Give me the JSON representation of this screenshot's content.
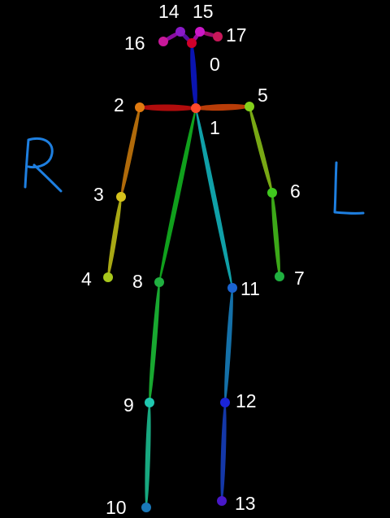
{
  "side_labels": {
    "right": "R",
    "left": "L"
  },
  "side_color": "#1e7fe0",
  "keypoints": [
    {
      "id": "0",
      "label": "0",
      "color": "#d0002a"
    },
    {
      "id": "1",
      "label": "1",
      "color": "#ff4a2a"
    },
    {
      "id": "2",
      "label": "2",
      "color": "#e07a10"
    },
    {
      "id": "3",
      "label": "3",
      "color": "#d6c21c"
    },
    {
      "id": "4",
      "label": "4",
      "color": "#a8c81c"
    },
    {
      "id": "5",
      "label": "5",
      "color": "#84d01c"
    },
    {
      "id": "6",
      "label": "6",
      "color": "#40c81e"
    },
    {
      "id": "7",
      "label": "7",
      "color": "#20b040"
    },
    {
      "id": "8",
      "label": "8",
      "color": "#20b040"
    },
    {
      "id": "9",
      "label": "9",
      "color": "#20c8b0"
    },
    {
      "id": "10",
      "label": "10",
      "color": "#1a78b8"
    },
    {
      "id": "11",
      "label": "11",
      "color": "#1a64d0"
    },
    {
      "id": "12",
      "label": "12",
      "color": "#1a24d8"
    },
    {
      "id": "13",
      "label": "13",
      "color": "#4818c8"
    },
    {
      "id": "14",
      "label": "14",
      "color": "#8a1ac8"
    },
    {
      "id": "15",
      "label": "15",
      "color": "#cc18c8"
    },
    {
      "id": "16",
      "label": "16",
      "color": "#c8189a"
    },
    {
      "id": "17",
      "label": "17",
      "color": "#c8185a"
    }
  ],
  "limbs": [
    {
      "from": "1",
      "to": "0",
      "color": "#0a14b0"
    },
    {
      "from": "1",
      "to": "2",
      "color": "#b00c0c"
    },
    {
      "from": "1",
      "to": "5",
      "color": "#b83c08"
    },
    {
      "from": "2",
      "to": "3",
      "color": "#b06a0a"
    },
    {
      "from": "3",
      "to": "4",
      "color": "#a8a814"
    },
    {
      "from": "5",
      "to": "6",
      "color": "#78a814"
    },
    {
      "from": "6",
      "to": "7",
      "color": "#3ca818"
    },
    {
      "from": "1",
      "to": "8",
      "color": "#10a01c"
    },
    {
      "from": "8",
      "to": "9",
      "color": "#18a830"
    },
    {
      "from": "9",
      "to": "10",
      "color": "#18a880"
    },
    {
      "from": "1",
      "to": "11",
      "color": "#10a0a8"
    },
    {
      "from": "11",
      "to": "12",
      "color": "#1470a8"
    },
    {
      "from": "12",
      "to": "13",
      "color": "#1438a8"
    },
    {
      "from": "0",
      "to": "14",
      "color": "#5a0ca0"
    },
    {
      "from": "14",
      "to": "16",
      "color": "#8a0ca0"
    },
    {
      "from": "0",
      "to": "15",
      "color": "#a00ca0"
    },
    {
      "from": "15",
      "to": "17",
      "color": "#a00c6a"
    }
  ]
}
